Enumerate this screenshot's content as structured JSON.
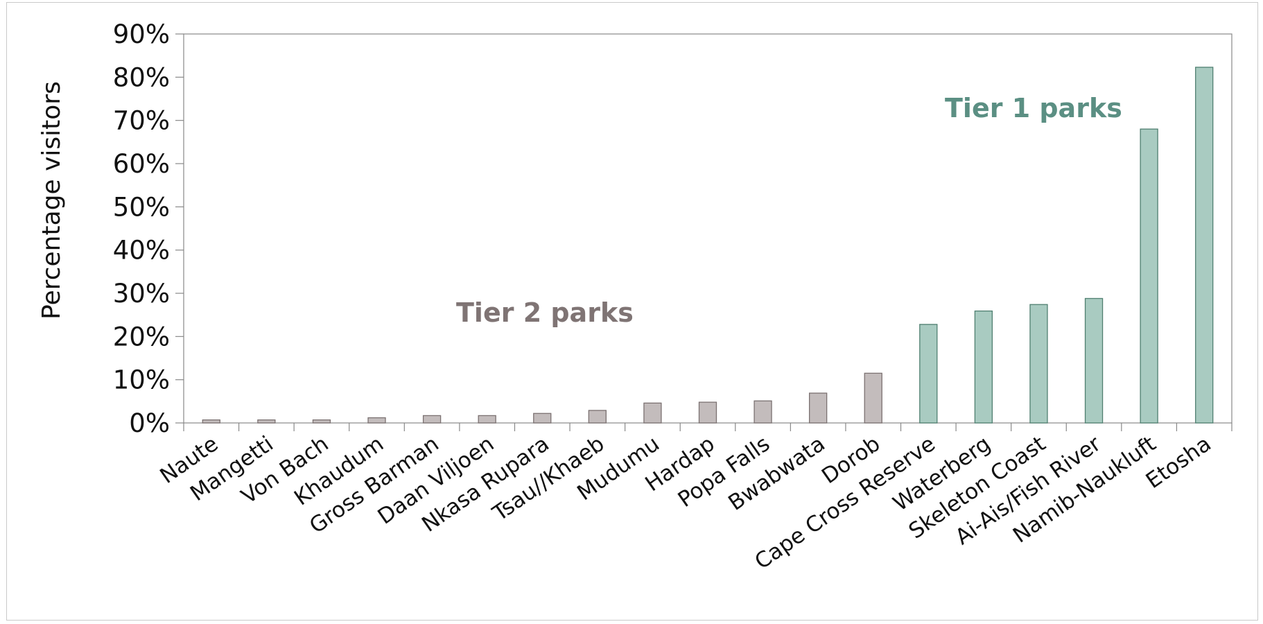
{
  "chart_data": {
    "type": "bar",
    "title": "",
    "xlabel": "",
    "ylabel": "Percentage visitors",
    "ylim": [
      0,
      90
    ],
    "yticks": [
      "0%",
      "10%",
      "20%",
      "30%",
      "40%",
      "50%",
      "60%",
      "70%",
      "80%",
      "90%"
    ],
    "categories": [
      "Naute",
      "Mangetti",
      "Von Bach",
      "Khaudum",
      "Gross Barman",
      "Daan Viljoen",
      "Nkasa Rupara",
      "Tsau//Khaeb",
      "Mudumu",
      "Hardap",
      "Popa Falls",
      "Bwabwata",
      "Dorob",
      "Cape Cross Reserve",
      "Waterberg",
      "Skeleton Coast",
      "Ai-Ais/Fish River",
      "Namib-Naukluft",
      "Etosha"
    ],
    "values": [
      0.7,
      0.7,
      0.7,
      1.2,
      1.7,
      1.7,
      2.2,
      2.9,
      4.6,
      4.8,
      5.1,
      6.9,
      11.5,
      22.8,
      25.9,
      27.4,
      28.8,
      68.0,
      82.3
    ],
    "tiers": [
      2,
      2,
      2,
      2,
      2,
      2,
      2,
      2,
      2,
      2,
      2,
      2,
      2,
      1,
      1,
      1,
      1,
      1,
      1
    ],
    "grid": false,
    "legend": "none",
    "annotations": [
      {
        "text": "Tier 2 parks",
        "color": "#7f7474"
      },
      {
        "text": "Tier 1 parks",
        "color": "#5b8f83"
      }
    ],
    "colors": {
      "tier2_fill": "#c3bcbc",
      "tier2_stroke": "#7b7171",
      "tier1_fill": "#a9cbc1",
      "tier1_stroke": "#4f7f70",
      "axis": "#888888"
    }
  }
}
